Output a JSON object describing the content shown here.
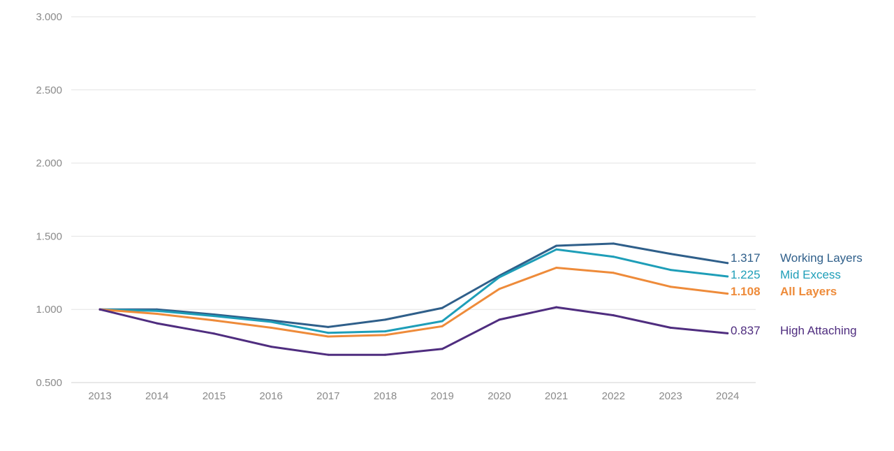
{
  "chart_data": {
    "type": "line",
    "x": [
      "2013",
      "2014",
      "2015",
      "2016",
      "2017",
      "2018",
      "2019",
      "2020",
      "2021",
      "2022",
      "2023",
      "2024"
    ],
    "ylim": [
      0.5,
      3.0
    ],
    "yticks": [
      "0.500",
      "1.000",
      "1.500",
      "2.000",
      "2.500",
      "3.000"
    ],
    "grid": true,
    "legend": "right end labels",
    "series": [
      {
        "name": "Working Layers",
        "end_label": "1.317",
        "color": "#2f5f8a",
        "bold": false,
        "values": [
          1.0,
          1.0,
          0.965,
          0.925,
          0.88,
          0.93,
          1.01,
          1.23,
          1.435,
          1.45,
          1.38,
          1.317
        ]
      },
      {
        "name": "Mid Excess",
        "end_label": "1.225",
        "color": "#1e9eb8",
        "bold": false,
        "values": [
          1.0,
          0.99,
          0.955,
          0.915,
          0.84,
          0.85,
          0.92,
          1.22,
          1.41,
          1.36,
          1.27,
          1.225
        ]
      },
      {
        "name": "All Layers",
        "end_label": "1.108",
        "color": "#ee8b3a",
        "bold": true,
        "values": [
          1.0,
          0.97,
          0.925,
          0.875,
          0.815,
          0.825,
          0.885,
          1.14,
          1.285,
          1.25,
          1.155,
          1.108
        ]
      },
      {
        "name": "High Attaching",
        "end_label": "0.837",
        "color": "#4f2d7f",
        "bold": false,
        "values": [
          1.0,
          0.905,
          0.835,
          0.745,
          0.69,
          0.69,
          0.73,
          0.93,
          1.015,
          0.96,
          0.875,
          0.837
        ]
      }
    ]
  }
}
